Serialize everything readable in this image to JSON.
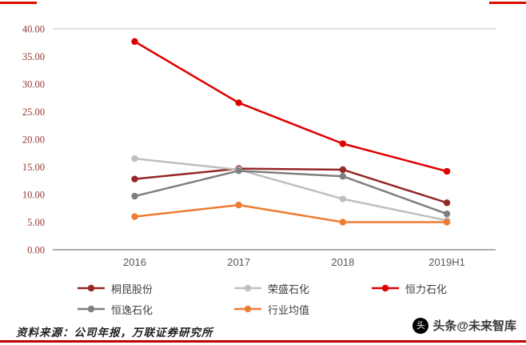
{
  "page": {
    "source_note": "资料来源：公司年报，万联证券研究所",
    "watermark": "头条@未来智库",
    "watermark_logo_glyph": "头",
    "accent_color": "#c00000"
  },
  "chart_data": {
    "type": "line",
    "title": "",
    "xlabel": "",
    "ylabel": "",
    "categories": [
      "2016",
      "2017",
      "2018",
      "2019H1"
    ],
    "series": [
      {
        "name": "桐昆股份",
        "color": "#952826",
        "values": [
          12.8,
          14.7,
          14.5,
          8.5
        ]
      },
      {
        "name": "荣盛石化",
        "color": "#bfbfbf",
        "values": [
          16.5,
          14.5,
          9.2,
          5.3
        ]
      },
      {
        "name": "恒力石化",
        "color": "#e00000",
        "values": [
          37.7,
          26.6,
          19.2,
          14.2
        ]
      },
      {
        "name": "恒逸石化",
        "color": "#7f7f7f",
        "values": [
          9.7,
          14.3,
          13.3,
          6.5
        ]
      },
      {
        "name": "行业均值",
        "color": "#ed7d31",
        "values": [
          6.0,
          8.1,
          5.0,
          5.0
        ]
      }
    ],
    "ylim": [
      0,
      40
    ],
    "ytick_step": 5,
    "ytick_labels": [
      "0.00",
      "5.00",
      "10.00",
      "15.00",
      "20.00",
      "25.00",
      "30.00",
      "35.00",
      "40.00"
    ],
    "grid": false,
    "legend_position": "bottom"
  }
}
